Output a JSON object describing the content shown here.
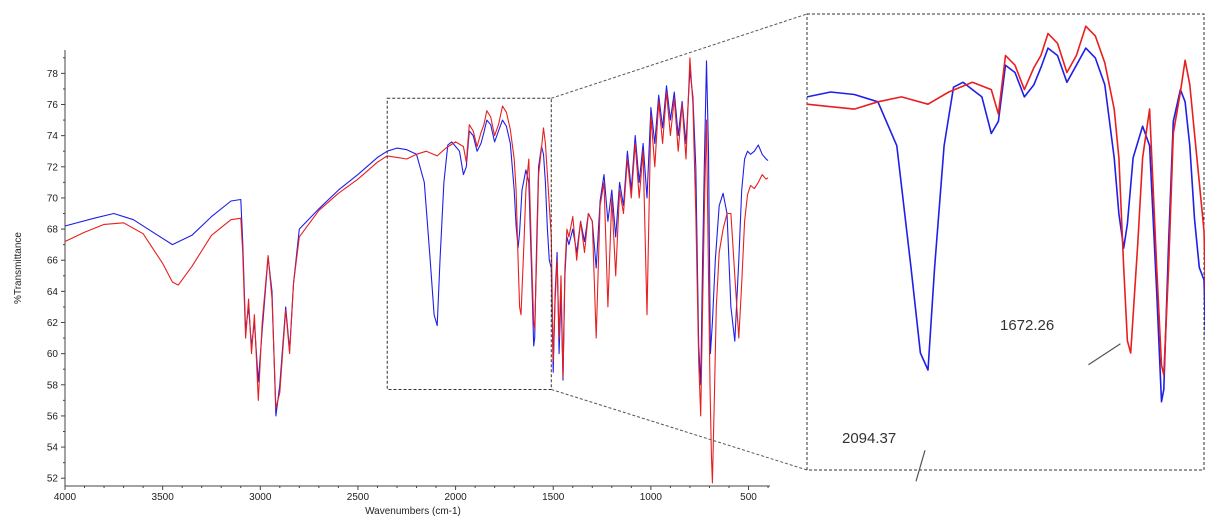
{
  "chart_data": [
    {
      "type": "line",
      "panel": "main",
      "xlabel": "Wavenumbers (cm-1)",
      "ylabel": "%Transmittance",
      "xlim": [
        4000,
        390
      ],
      "ylim": [
        51.5,
        79.5
      ],
      "x_reversed": true,
      "x_ticks": [
        4000,
        3500,
        3000,
        2500,
        2000,
        1500,
        1000,
        500
      ],
      "y_ticks": [
        52,
        54,
        56,
        58,
        60,
        62,
        64,
        66,
        68,
        70,
        72,
        74,
        76,
        78
      ],
      "grid": false,
      "legend": "none",
      "zoom_box": {
        "x": [
          2350,
          1510
        ],
        "y": [
          57.7,
          76.4
        ]
      },
      "series": [
        {
          "color": "#1f1fe8",
          "x": [
            4000,
            3850,
            3750,
            3650,
            3550,
            3450,
            3350,
            3250,
            3150,
            3100,
            3090,
            3075,
            3060,
            3045,
            3030,
            3010,
            2990,
            2960,
            2940,
            2920,
            2900,
            2870,
            2850,
            2830,
            2800,
            2700,
            2600,
            2500,
            2400,
            2350,
            2300,
            2250,
            2200,
            2160,
            2130,
            2110,
            2094,
            2080,
            2060,
            2040,
            2020,
            2000,
            1980,
            1960,
            1945,
            1930,
            1910,
            1890,
            1870,
            1855,
            1840,
            1820,
            1800,
            1780,
            1760,
            1740,
            1720,
            1700,
            1690,
            1680,
            1672,
            1660,
            1640,
            1625,
            1610,
            1600,
            1595,
            1585,
            1575,
            1560,
            1550,
            1540,
            1530,
            1520,
            1510,
            1500,
            1490,
            1480,
            1470,
            1460,
            1450,
            1440,
            1430,
            1420,
            1400,
            1380,
            1360,
            1340,
            1320,
            1300,
            1280,
            1260,
            1240,
            1220,
            1200,
            1180,
            1160,
            1140,
            1120,
            1100,
            1080,
            1060,
            1040,
            1020,
            1000,
            980,
            960,
            940,
            920,
            900,
            880,
            860,
            840,
            820,
            800,
            785,
            770,
            755,
            745,
            735,
            725,
            715,
            705,
            695,
            685,
            670,
            650,
            630,
            610,
            590,
            570,
            550,
            535,
            520,
            505,
            490,
            470,
            450,
            430,
            410,
            400
          ],
          "y": [
            68.2,
            68.7,
            69.0,
            68.6,
            67.8,
            67.0,
            67.6,
            68.8,
            69.8,
            69.9,
            67.2,
            61.5,
            63.0,
            60.5,
            62.0,
            58.2,
            61.5,
            66.2,
            64.0,
            56.0,
            58.0,
            63.0,
            60.2,
            64.5,
            68.0,
            69.3,
            70.5,
            71.5,
            72.6,
            73.0,
            73.2,
            73.1,
            72.8,
            71.0,
            66.0,
            62.5,
            61.8,
            66.0,
            71.0,
            73.4,
            73.6,
            73.3,
            73.0,
            71.5,
            72.0,
            74.3,
            74.0,
            73.0,
            73.5,
            74.2,
            75.0,
            74.7,
            73.6,
            74.3,
            75.0,
            74.6,
            73.5,
            70.5,
            68.2,
            66.8,
            67.8,
            70.5,
            71.8,
            71.0,
            65.0,
            60.5,
            61.0,
            67.0,
            72.0,
            73.3,
            72.8,
            71.0,
            68.0,
            66.0,
            65.5,
            58.8,
            64.0,
            66.5,
            60.0,
            64.0,
            58.3,
            65.0,
            67.5,
            67.0,
            68.0,
            66.5,
            68.5,
            67.2,
            69.0,
            68.5,
            65.5,
            69.8,
            71.5,
            68.5,
            70.5,
            67.5,
            71.0,
            69.5,
            73.0,
            70.5,
            74.0,
            71.0,
            73.5,
            70.0,
            75.8,
            73.5,
            76.6,
            74.5,
            77.2,
            75.0,
            76.8,
            74.0,
            76.2,
            73.5,
            78.2,
            76.5,
            72.0,
            60.5,
            58.0,
            66.0,
            73.0,
            78.8,
            73.0,
            60.0,
            62.0,
            66.0,
            69.5,
            70.3,
            69.0,
            63.0,
            60.8,
            66.0,
            70.5,
            72.5,
            73.0,
            72.8,
            73.0,
            73.4,
            72.8,
            72.5,
            72.4
          ]
        },
        {
          "color": "#e81f1f",
          "x": [
            4000,
            3900,
            3800,
            3700,
            3600,
            3500,
            3450,
            3420,
            3350,
            3250,
            3150,
            3100,
            3090,
            3075,
            3060,
            3045,
            3030,
            3010,
            2990,
            2960,
            2940,
            2920,
            2900,
            2870,
            2850,
            2830,
            2800,
            2700,
            2600,
            2500,
            2400,
            2350,
            2300,
            2250,
            2200,
            2150,
            2094,
            2050,
            2000,
            1960,
            1945,
            1930,
            1910,
            1890,
            1870,
            1855,
            1840,
            1820,
            1800,
            1780,
            1760,
            1740,
            1720,
            1700,
            1690,
            1680,
            1672,
            1665,
            1650,
            1640,
            1625,
            1610,
            1600,
            1595,
            1585,
            1575,
            1560,
            1550,
            1540,
            1530,
            1520,
            1510,
            1500,
            1490,
            1480,
            1470,
            1460,
            1450,
            1440,
            1430,
            1420,
            1400,
            1380,
            1360,
            1340,
            1320,
            1300,
            1280,
            1260,
            1240,
            1220,
            1200,
            1180,
            1160,
            1140,
            1120,
            1100,
            1080,
            1060,
            1040,
            1020,
            1000,
            980,
            960,
            940,
            920,
            900,
            880,
            860,
            840,
            820,
            800,
            785,
            770,
            755,
            745,
            735,
            725,
            715,
            705,
            697,
            690,
            685,
            675,
            665,
            650,
            630,
            610,
            590,
            570,
            550,
            535,
            520,
            505,
            490,
            470,
            450,
            430,
            410,
            400
          ],
          "y": [
            67.2,
            67.8,
            68.3,
            68.4,
            67.7,
            65.8,
            64.6,
            64.4,
            65.6,
            67.6,
            68.6,
            68.7,
            66.5,
            61.0,
            63.5,
            60.0,
            62.5,
            57.0,
            62.0,
            66.3,
            63.5,
            56.5,
            57.5,
            62.8,
            60.0,
            64.5,
            67.5,
            69.2,
            70.3,
            71.2,
            72.3,
            72.7,
            72.6,
            72.5,
            72.8,
            73.0,
            72.7,
            73.2,
            73.6,
            73.3,
            72.3,
            74.7,
            74.3,
            73.3,
            74.2,
            74.7,
            75.6,
            75.2,
            74.0,
            74.7,
            75.9,
            75.5,
            74.4,
            72.5,
            70.5,
            66.0,
            63.0,
            62.5,
            67.0,
            70.5,
            72.5,
            66.0,
            62.0,
            61.6,
            66.0,
            71.5,
            73.2,
            74.5,
            73.5,
            71.5,
            69.5,
            67.5,
            59.5,
            63.5,
            66.0,
            61.0,
            65.0,
            58.5,
            65.5,
            68.0,
            67.5,
            68.8,
            66.0,
            68.5,
            66.5,
            69.0,
            68.5,
            61.0,
            69.5,
            71.0,
            63.0,
            70.0,
            65.0,
            70.5,
            69.0,
            72.5,
            70.0,
            73.5,
            70.0,
            73.0,
            62.5,
            75.3,
            72.0,
            76.2,
            73.5,
            76.8,
            74.0,
            76.4,
            73.0,
            76.0,
            72.5,
            79.0,
            76.0,
            69.0,
            59.5,
            56.0,
            63.0,
            70.0,
            75.0,
            65.0,
            58.0,
            53.5,
            51.7,
            57.0,
            63.0,
            66.5,
            68.0,
            69.0,
            69.0,
            65.0,
            61.0,
            64.5,
            68.5,
            70.2,
            70.8,
            70.6,
            71.0,
            71.5,
            71.2,
            71.3
          ]
        }
      ]
    },
    {
      "type": "line",
      "panel": "inset",
      "annotations": [
        {
          "text": "2094.37",
          "x": 2094,
          "y_curve": 59.0
        },
        {
          "text": "1672.26",
          "x": 1672,
          "y_curve": 63.0
        }
      ]
    }
  ]
}
